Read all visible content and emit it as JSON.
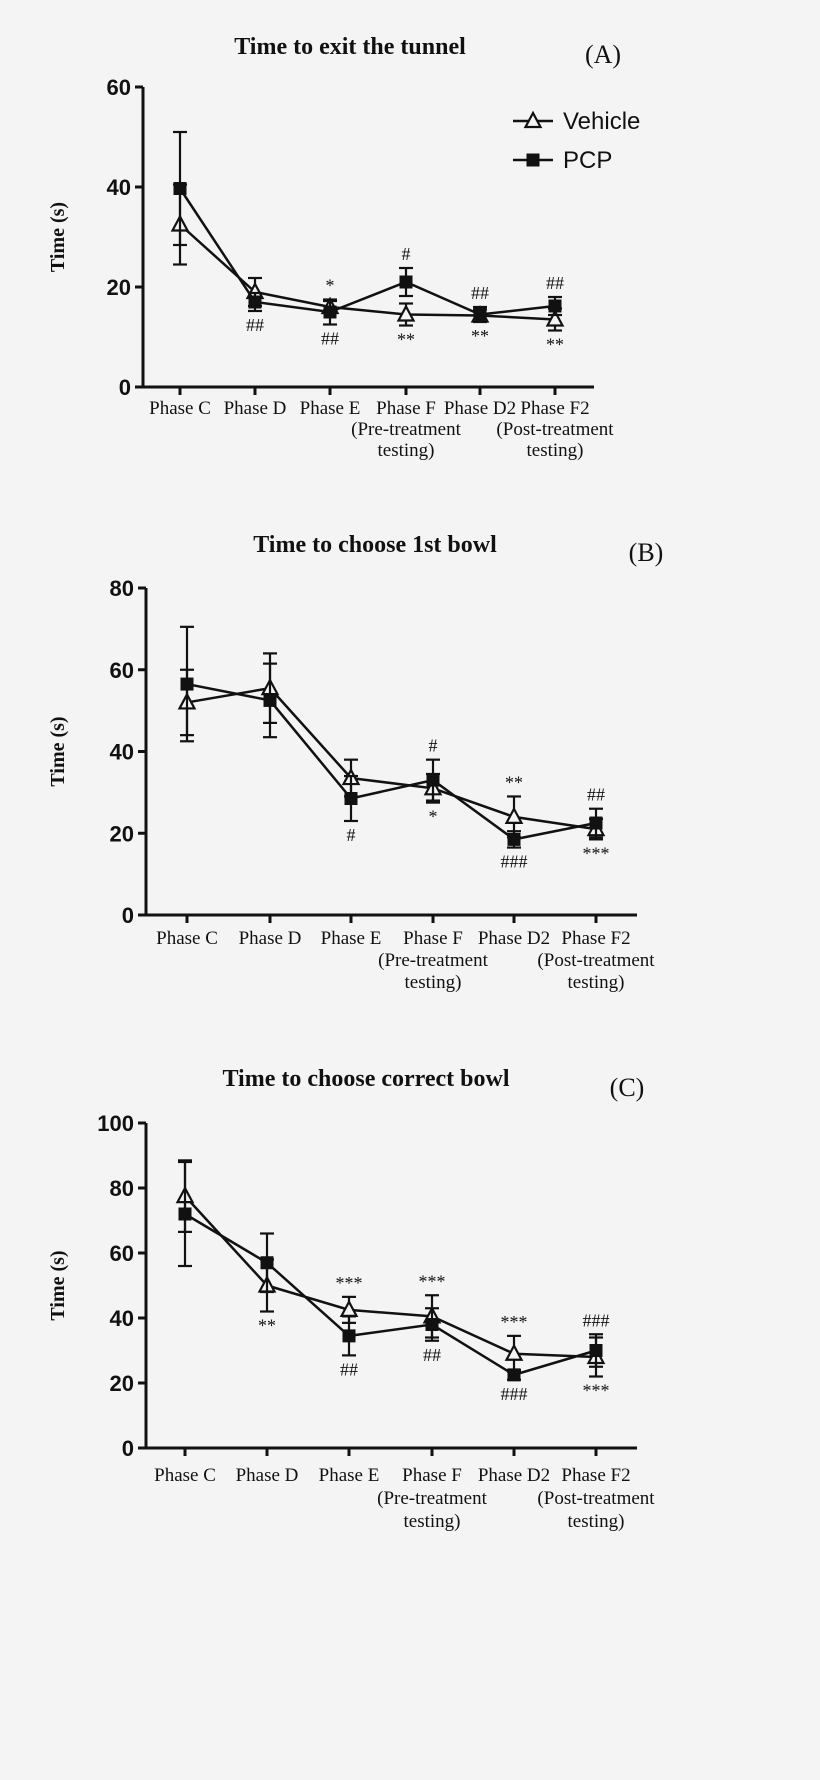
{
  "legend": {
    "vehicle": "Vehicle",
    "pcp": "PCP"
  },
  "chart_data": [
    {
      "type": "line",
      "panel_label": "(A)",
      "title": "Time to exit the tunnel",
      "ylabel": "Time (s)",
      "ylim": [
        0,
        60
      ],
      "yticks": [
        0,
        20,
        40,
        60
      ],
      "categories": [
        [
          "Phase C"
        ],
        [
          "Phase D"
        ],
        [
          "Phase E"
        ],
        [
          "Phase F",
          "(Pre-treatment",
          "testing)"
        ],
        [
          "Phase D2"
        ],
        [
          "Phase F2",
          "(Post-treatment",
          "testing)"
        ]
      ],
      "legend_position": "top-right",
      "series": [
        {
          "name": "Vehicle",
          "marker": "open-triangle",
          "values": [
            32.5,
            19.0,
            16.0,
            14.5,
            14.3,
            13.5
          ],
          "errors": [
            8.0,
            2.8,
            1.2,
            2.2,
            1.2,
            2.2
          ]
        },
        {
          "name": "PCP",
          "marker": "filled-square",
          "values": [
            39.7,
            17.0,
            15.0,
            21.0,
            14.5,
            16.2
          ],
          "errors": [
            11.3,
            1.8,
            2.5,
            2.8,
            1.5,
            1.8
          ]
        }
      ],
      "annotations": [
        {
          "x": 1,
          "side": "below",
          "text": "##"
        },
        {
          "x": 2,
          "side": "above",
          "text": "*"
        },
        {
          "x": 2,
          "side": "below",
          "text": "##"
        },
        {
          "x": 3,
          "side": "above",
          "text": "#"
        },
        {
          "x": 3,
          "side": "below",
          "text": "**"
        },
        {
          "x": 4,
          "side": "above",
          "text": "##"
        },
        {
          "x": 4,
          "side": "below",
          "text": "**"
        },
        {
          "x": 5,
          "side": "above",
          "text": "##"
        },
        {
          "x": 5,
          "side": "below",
          "text": "**"
        }
      ]
    },
    {
      "type": "line",
      "panel_label": "(B)",
      "title": "Time to choose 1st bowl",
      "ylabel": "Time (s)",
      "ylim": [
        0,
        80
      ],
      "yticks": [
        0,
        20,
        40,
        60,
        80
      ],
      "categories": [
        [
          "Phase C"
        ],
        [
          "Phase D"
        ],
        [
          "Phase E"
        ],
        [
          "Phase F",
          "(Pre-treatment",
          "testing)"
        ],
        [
          "Phase D2"
        ],
        [
          "Phase F2",
          "(Post-treatment",
          "testing)"
        ]
      ],
      "series": [
        {
          "name": "Vehicle",
          "marker": "open-triangle",
          "values": [
            52.0,
            55.5,
            33.5,
            31.0,
            24.0,
            21.0
          ],
          "errors": [
            8.0,
            8.5,
            4.5,
            3.5,
            5.0,
            2.5
          ]
        },
        {
          "name": "PCP",
          "marker": "filled-square",
          "values": [
            56.5,
            52.5,
            28.5,
            33.0,
            18.5,
            22.5
          ],
          "errors": [
            14.0,
            9.0,
            5.5,
            5.0,
            2.0,
            3.5
          ]
        }
      ],
      "annotations": [
        {
          "x": 2,
          "side": "below",
          "text": "#"
        },
        {
          "x": 3,
          "side": "above",
          "text": "#"
        },
        {
          "x": 3,
          "side": "below",
          "text": "*"
        },
        {
          "x": 4,
          "side": "above",
          "text": "**"
        },
        {
          "x": 4,
          "side": "below",
          "text": "###"
        },
        {
          "x": 5,
          "side": "above",
          "text": "##"
        },
        {
          "x": 5,
          "side": "below",
          "text": "***"
        }
      ]
    },
    {
      "type": "line",
      "panel_label": "(C)",
      "title": "Time to choose correct bowl",
      "ylabel": "Time (s)",
      "ylim": [
        0,
        100
      ],
      "yticks": [
        0,
        20,
        40,
        60,
        80,
        100
      ],
      "categories": [
        [
          "Phase C"
        ],
        [
          "Phase D"
        ],
        [
          "Phase E"
        ],
        [
          "Phase F",
          "(Pre-treatment",
          "testing)"
        ],
        [
          "Phase D2"
        ],
        [
          "Phase F2",
          "(Post-treatment",
          "testing)"
        ]
      ],
      "series": [
        {
          "name": "Vehicle",
          "marker": "open-triangle",
          "values": [
            77.5,
            50.0,
            42.5,
            40.5,
            29.0,
            28.0
          ],
          "errors": [
            11.0,
            8.0,
            4.0,
            6.5,
            5.5,
            6.0
          ]
        },
        {
          "name": "PCP",
          "marker": "filled-square",
          "values": [
            72.0,
            57.0,
            34.5,
            38.0,
            22.5,
            30.0
          ],
          "errors": [
            16.0,
            9.0,
            6.0,
            5.0,
            1.5,
            5.0
          ]
        }
      ],
      "annotations": [
        {
          "x": 1,
          "side": "below",
          "text": "**"
        },
        {
          "x": 2,
          "side": "above",
          "text": "***"
        },
        {
          "x": 2,
          "side": "below",
          "text": "##"
        },
        {
          "x": 3,
          "side": "above",
          "text": "***"
        },
        {
          "x": 3,
          "side": "below",
          "text": "##"
        },
        {
          "x": 4,
          "side": "above",
          "text": "***"
        },
        {
          "x": 4,
          "side": "below",
          "text": "###"
        },
        {
          "x": 5,
          "side": "above",
          "text": "###"
        },
        {
          "x": 5,
          "side": "below",
          "text": "***"
        }
      ]
    }
  ]
}
